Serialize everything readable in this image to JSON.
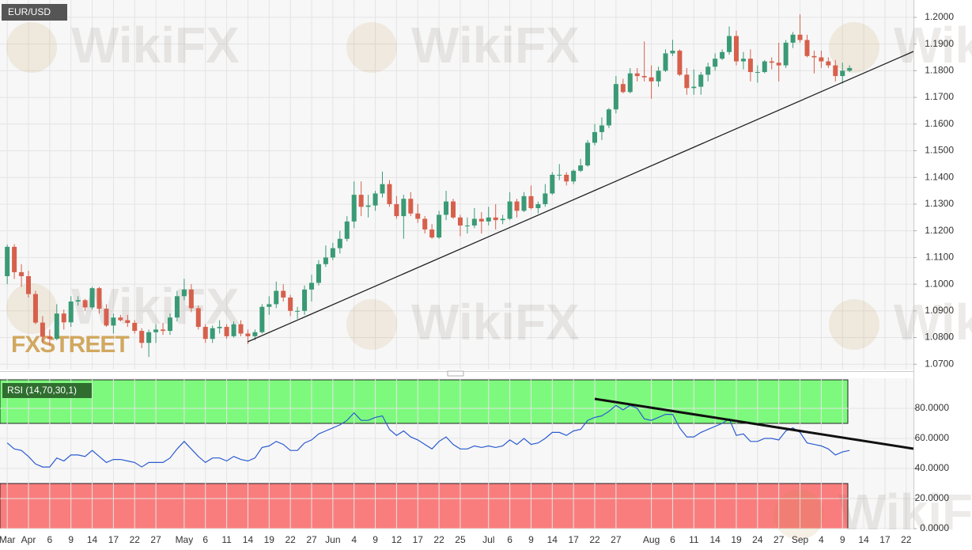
{
  "chart_data": [
    {
      "type": "candlestick",
      "title": "EUR/USD",
      "logo": "FXSTREET",
      "watermark": "WikiFX",
      "up_color": "#3a9a76",
      "down_color": "#d6604c",
      "grid": true,
      "categories": [
        "Mar",
        null,
        null,
        "Apr",
        null,
        null,
        "6",
        null,
        null,
        "9",
        null,
        null,
        "14",
        null,
        null,
        "17",
        null,
        null,
        "22",
        null,
        null,
        "27",
        null,
        null,
        null,
        "May",
        null,
        null,
        "6",
        null,
        null,
        "11",
        null,
        null,
        "14",
        null,
        null,
        "19",
        null,
        null,
        "22",
        null,
        null,
        "27",
        null,
        null,
        "Jun",
        null,
        null,
        "4",
        null,
        null,
        "9",
        null,
        null,
        "12",
        null,
        null,
        "17",
        null,
        null,
        "22",
        null,
        null,
        "25",
        null,
        null,
        null,
        "Jul",
        null,
        null,
        "6",
        null,
        null,
        "9",
        null,
        null,
        "14",
        null,
        null,
        "17",
        null,
        null,
        "22",
        null,
        null,
        "27",
        null,
        null,
        null,
        null,
        "Aug",
        null,
        null,
        "6",
        null,
        null,
        "11",
        null,
        null,
        "14",
        null,
        null,
        "19",
        null,
        null,
        "24",
        null,
        null,
        "27",
        null,
        null,
        "Sep",
        null,
        null,
        "4",
        null,
        null,
        "9",
        null,
        null,
        "14",
        null,
        null,
        "17",
        null,
        null,
        "22"
      ],
      "open": [
        1.103,
        1.114,
        1.1045,
        1.103,
        1.0963,
        1.0856,
        1.0803,
        1.0795,
        1.089,
        1.0857,
        1.0935,
        1.094,
        1.0913,
        1.0985,
        1.0908,
        1.0845,
        1.0875,
        1.0865,
        1.0855,
        1.0825,
        1.078,
        1.082,
        1.083,
        1.0825,
        1.0875,
        1.0955,
        1.098,
        1.091,
        1.084,
        1.0795,
        1.0835,
        1.084,
        1.0805,
        1.085,
        1.0815,
        1.0805,
        1.082,
        1.0915,
        1.0925,
        1.0975,
        1.095,
        1.09,
        1.09,
        1.098,
        1.1005,
        1.1075,
        1.11,
        1.1135,
        1.117,
        1.1235,
        1.1335,
        1.129,
        1.1295,
        1.134,
        1.1375,
        1.13,
        1.1255,
        1.132,
        1.1265,
        1.1245,
        1.1205,
        1.1175,
        1.126,
        1.131,
        1.125,
        1.122,
        1.122,
        1.1245,
        1.1235,
        1.125,
        1.124,
        1.1245,
        1.131,
        1.1275,
        1.133,
        1.1285,
        1.13,
        1.134,
        1.141,
        1.141,
        1.1385,
        1.1425,
        1.1445,
        1.153,
        1.157,
        1.1595,
        1.1655,
        1.175,
        1.172,
        1.179,
        1.178,
        1.1775,
        1.176,
        1.18,
        1.1865,
        1.1875,
        1.1785,
        1.1735,
        1.174,
        1.1785,
        1.1815,
        1.1845,
        1.187,
        1.193,
        1.1835,
        1.1845,
        1.1795,
        1.1795,
        1.1835,
        1.183,
        1.182,
        1.1905,
        1.1935,
        1.1915,
        1.1855,
        1.185,
        1.1835,
        1.182,
        1.178,
        1.18,
        null,
        null,
        null,
        null,
        null,
        null,
        null,
        null
      ],
      "high": [
        1.1148,
        1.115,
        1.1075,
        1.105,
        1.0975,
        1.088,
        1.083,
        1.0925,
        1.0905,
        1.0955,
        1.0955,
        1.0945,
        1.099,
        1.099,
        1.0925,
        1.089,
        1.0885,
        1.0885,
        1.0865,
        1.0835,
        1.083,
        1.085,
        1.0855,
        1.089,
        1.0975,
        1.102,
        1.1,
        1.092,
        1.085,
        1.0845,
        1.0865,
        1.085,
        1.086,
        1.0865,
        1.083,
        1.083,
        1.0925,
        1.0955,
        1.101,
        1.1,
        1.096,
        1.0915,
        1.0995,
        1.1035,
        1.109,
        1.1145,
        1.1155,
        1.12,
        1.1255,
        1.1385,
        1.1385,
        1.1335,
        1.135,
        1.1422,
        1.139,
        1.133,
        1.1335,
        1.1345,
        1.13,
        1.1255,
        1.1225,
        1.1275,
        1.135,
        1.132,
        1.126,
        1.125,
        1.1285,
        1.127,
        1.129,
        1.13,
        1.126,
        1.1345,
        1.132,
        1.1345,
        1.137,
        1.131,
        1.1375,
        1.142,
        1.145,
        1.142,
        1.143,
        1.147,
        1.154,
        1.16,
        1.1625,
        1.166,
        1.178,
        1.177,
        1.181,
        1.181,
        1.191,
        1.182,
        1.1815,
        1.188,
        1.1916,
        1.188,
        1.181,
        1.1805,
        1.1795,
        1.183,
        1.1865,
        1.188,
        1.1966,
        1.195,
        1.187,
        1.188,
        1.182,
        1.184,
        1.185,
        1.1905,
        1.1915,
        1.1945,
        1.2011,
        1.1935,
        1.1875,
        1.1875,
        1.185,
        1.184,
        1.183,
        1.182,
        null,
        null,
        null,
        null,
        null,
        null,
        null,
        null
      ],
      "low": [
        1.1,
        1.102,
        1.099,
        1.095,
        1.085,
        1.078,
        1.077,
        1.079,
        1.083,
        1.084,
        1.092,
        1.09,
        1.0905,
        1.089,
        1.084,
        1.0815,
        1.086,
        1.084,
        1.0815,
        1.076,
        1.0727,
        1.078,
        1.081,
        1.081,
        1.086,
        1.094,
        1.0895,
        1.083,
        1.078,
        1.078,
        1.0815,
        1.0795,
        1.08,
        1.0805,
        1.0775,
        1.079,
        1.0815,
        1.0885,
        1.091,
        1.0935,
        1.088,
        1.087,
        1.0885,
        1.0935,
        1.0995,
        1.1065,
        1.109,
        1.1115,
        1.116,
        1.121,
        1.1255,
        1.125,
        1.1275,
        1.1325,
        1.129,
        1.1245,
        1.117,
        1.1255,
        1.123,
        1.119,
        1.117,
        1.117,
        1.124,
        1.1245,
        1.118,
        1.119,
        1.121,
        1.119,
        1.122,
        1.1205,
        1.1225,
        1.124,
        1.125,
        1.127,
        1.128,
        1.1265,
        1.129,
        1.1335,
        1.139,
        1.137,
        1.1375,
        1.142,
        1.144,
        1.152,
        1.154,
        1.1585,
        1.164,
        1.1715,
        1.1715,
        1.176,
        1.176,
        1.1695,
        1.174,
        1.1795,
        1.1855,
        1.178,
        1.171,
        1.171,
        1.171,
        1.176,
        1.18,
        1.184,
        1.186,
        1.182,
        1.1805,
        1.176,
        1.1755,
        1.179,
        1.1805,
        1.176,
        1.181,
        1.1885,
        1.1905,
        1.185,
        1.179,
        1.181,
        1.181,
        1.176,
        1.1752,
        1.1795,
        null,
        null,
        null,
        null,
        null,
        null,
        null,
        null
      ],
      "close": [
        1.114,
        1.1045,
        1.103,
        1.0963,
        1.0856,
        1.0803,
        1.0795,
        1.089,
        1.0857,
        1.0935,
        1.094,
        1.0913,
        1.0985,
        1.0908,
        1.0845,
        1.0875,
        1.0865,
        1.0855,
        1.0825,
        1.078,
        1.082,
        1.083,
        1.0825,
        1.0875,
        1.0955,
        1.098,
        1.091,
        1.084,
        1.0795,
        1.0835,
        1.084,
        1.0805,
        1.085,
        1.0815,
        1.0805,
        1.082,
        1.0915,
        1.0925,
        1.0975,
        1.095,
        1.09,
        1.09,
        1.098,
        1.1005,
        1.1075,
        1.11,
        1.1135,
        1.117,
        1.1235,
        1.1335,
        1.129,
        1.1295,
        1.134,
        1.1375,
        1.13,
        1.1255,
        1.132,
        1.1265,
        1.1245,
        1.1205,
        1.1175,
        1.126,
        1.131,
        1.125,
        1.122,
        1.122,
        1.1245,
        1.1235,
        1.125,
        1.124,
        1.1245,
        1.131,
        1.1275,
        1.133,
        1.1285,
        1.13,
        1.134,
        1.141,
        1.141,
        1.1385,
        1.1425,
        1.1445,
        1.153,
        1.157,
        1.1595,
        1.1655,
        1.175,
        1.172,
        1.179,
        1.178,
        1.1775,
        1.176,
        1.18,
        1.1865,
        1.1875,
        1.1785,
        1.1735,
        1.174,
        1.1785,
        1.1815,
        1.1845,
        1.187,
        1.193,
        1.1835,
        1.1845,
        1.1795,
        1.1795,
        1.1835,
        1.183,
        1.182,
        1.1905,
        1.1935,
        1.1915,
        1.1855,
        1.185,
        1.1835,
        1.182,
        1.178,
        1.18,
        1.181,
        null,
        null,
        null,
        null,
        null,
        null,
        null,
        null
      ],
      "ylim": [
        1.068,
        1.2065
      ],
      "yticks": [
        {
          "value": 1.07,
          "label": "1.0700"
        },
        {
          "value": 1.08,
          "label": "1.0800"
        },
        {
          "value": 1.09,
          "label": "1.0900"
        },
        {
          "value": 1.1,
          "label": "1.1000"
        },
        {
          "value": 1.11,
          "label": "1.1100"
        },
        {
          "value": 1.12,
          "label": "1.1200"
        },
        {
          "value": 1.13,
          "label": "1.1300"
        },
        {
          "value": 1.14,
          "label": "1.1400"
        },
        {
          "value": 1.15,
          "label": "1.1500"
        },
        {
          "value": 1.16,
          "label": "1.1600"
        },
        {
          "value": 1.17,
          "label": "1.1700"
        },
        {
          "value": 1.18,
          "label": "1.1800"
        },
        {
          "value": 1.19,
          "label": "1.1900"
        },
        {
          "value": 1.2,
          "label": "1.2000"
        }
      ]
    },
    {
      "type": "line",
      "title": "RSI (14,70,30,1)",
      "color": "#2a5bd0",
      "grid": true,
      "values": [
        57,
        53,
        52,
        48,
        43,
        41,
        41,
        47,
        45,
        49,
        49,
        48,
        52,
        48,
        44,
        46,
        46,
        45,
        44,
        41,
        44,
        44,
        44,
        47,
        53,
        58,
        53,
        48,
        44,
        47,
        47,
        45,
        48,
        46,
        45,
        47,
        54,
        55,
        58,
        56,
        52,
        52,
        57,
        59,
        63,
        65,
        67,
        69,
        72,
        77,
        72,
        72,
        74,
        75,
        66,
        62,
        65,
        61,
        59,
        56,
        53,
        58,
        61,
        56,
        53,
        53,
        55,
        54,
        55,
        54,
        55,
        59,
        56,
        60,
        56,
        57,
        60,
        64,
        64,
        62,
        65,
        66,
        72,
        74,
        75,
        78,
        82,
        79,
        82,
        80,
        73,
        72,
        74,
        76,
        76,
        67,
        61,
        61,
        64,
        66,
        68,
        70,
        73,
        62,
        63,
        58,
        58,
        60,
        60,
        59,
        65,
        67,
        64,
        57,
        56,
        55,
        53,
        49,
        51,
        52,
        null,
        null,
        null,
        null,
        null,
        null,
        null,
        null
      ],
      "ylim": [
        0,
        100
      ],
      "yticks": [
        {
          "value": 0,
          "label": "0.0000"
        },
        {
          "value": 20,
          "label": "20.0000"
        },
        {
          "value": 40,
          "label": "40.0000"
        },
        {
          "value": 60,
          "label": "60.0000"
        },
        {
          "value": 80,
          "label": "80.0000"
        }
      ]
    }
  ]
}
